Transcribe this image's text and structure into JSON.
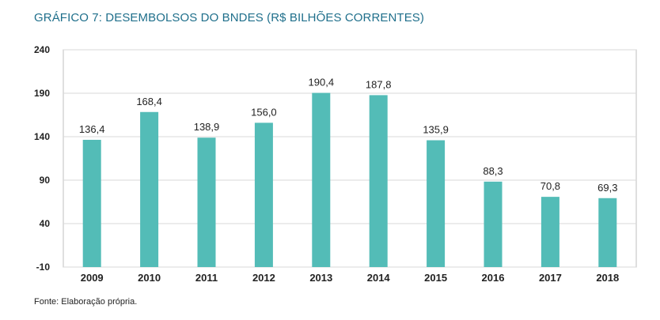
{
  "title": "GRÁFICO 7: DESEMBOLSOS DO BNDES (R$ BILHÕES CORRENTES)",
  "source": "Fonte: Elaboração própria.",
  "colors": {
    "bar": "#53bcb7",
    "grid": "#d9d9d9",
    "axis": "#bfbfbf"
  },
  "chart_data": {
    "type": "bar",
    "categories": [
      "2009",
      "2010",
      "2011",
      "2012",
      "2013",
      "2014",
      "2015",
      "2016",
      "2017",
      "2018"
    ],
    "values": [
      136.4,
      168.4,
      138.9,
      156.0,
      190.4,
      187.8,
      135.9,
      88.3,
      70.8,
      69.3
    ],
    "data_labels": [
      "136,4",
      "168,4",
      "138,9",
      "156,0",
      "190,4",
      "187,8",
      "135,9",
      "88,3",
      "70,8",
      "69,3"
    ],
    "yticks": [
      -10,
      40,
      90,
      140,
      190,
      240
    ],
    "ytick_labels": [
      "-10",
      "40",
      "90",
      "140",
      "190",
      "240"
    ],
    "ylim": [
      -10,
      240
    ],
    "grid": true,
    "legend": "none"
  }
}
